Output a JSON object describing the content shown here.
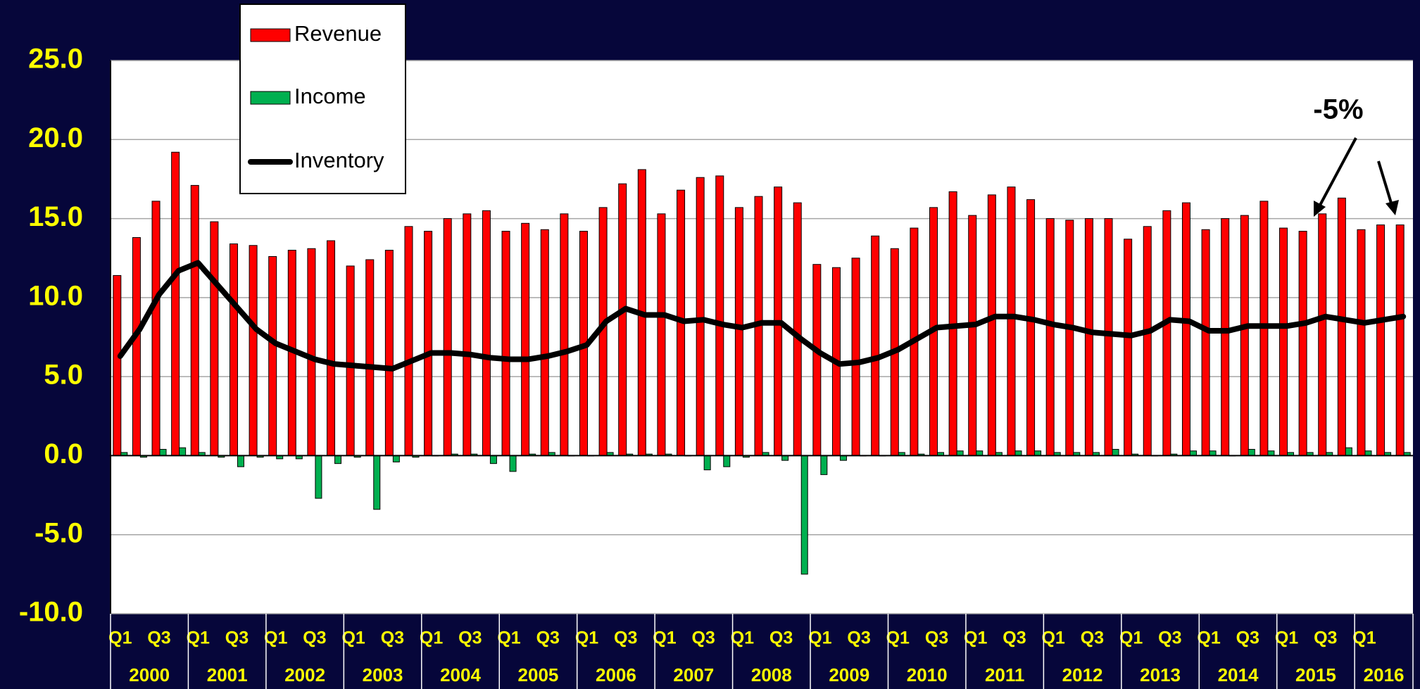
{
  "chart_data": {
    "type": "bar_line",
    "categories": [
      "Q1",
      null,
      "Q3",
      null,
      "Q1",
      null,
      "Q3",
      null,
      "Q1",
      null,
      "Q3",
      null,
      "Q1",
      null,
      "Q3",
      null,
      "Q1",
      null,
      "Q3",
      null,
      "Q1",
      null,
      "Q3",
      null,
      "Q1",
      null,
      "Q3",
      null,
      "Q1",
      null,
      "Q3",
      null,
      "Q1",
      null,
      "Q3",
      null,
      "Q1",
      null,
      "Q3",
      null,
      "Q1",
      null,
      "Q3",
      null,
      "Q1",
      null,
      "Q3",
      null,
      "Q1",
      null,
      "Q3",
      null,
      "Q1",
      null,
      "Q3",
      null,
      "Q1",
      null,
      "Q3",
      null,
      "Q1",
      null,
      "Q3",
      null,
      "Q1",
      null,
      null
    ],
    "year_labels": [
      "2000",
      "2001",
      "2002",
      "2003",
      "2004",
      "2005",
      "2006",
      "2007",
      "2008",
      "2009",
      "2010",
      "2011",
      "2012",
      "2013",
      "2014",
      "2015",
      "2016"
    ],
    "series": [
      {
        "name": "Revenue",
        "type": "bar",
        "color": "#ff0000",
        "values": [
          11.4,
          13.8,
          16.1,
          19.2,
          17.1,
          14.8,
          13.4,
          13.3,
          12.6,
          13.0,
          13.1,
          13.6,
          12.0,
          12.4,
          13.0,
          14.5,
          14.2,
          15.0,
          15.3,
          15.5,
          14.2,
          14.7,
          14.3,
          15.3,
          14.2,
          15.7,
          17.2,
          18.1,
          15.3,
          16.8,
          17.6,
          17.7,
          15.7,
          16.4,
          17.0,
          16.0,
          12.1,
          11.9,
          12.5,
          13.9,
          13.1,
          14.4,
          15.7,
          16.7,
          15.2,
          16.5,
          17.0,
          16.2,
          15.0,
          14.9,
          15.0,
          15.0,
          13.7,
          14.5,
          15.5,
          16.0,
          14.3,
          15.0,
          15.2,
          16.1,
          14.4,
          14.2,
          15.3,
          16.3,
          14.3,
          14.6,
          14.6
        ]
      },
      {
        "name": "Income",
        "type": "bar",
        "color": "#00b050",
        "values": [
          0.2,
          -0.1,
          0.4,
          0.5,
          0.2,
          -0.1,
          -0.7,
          -0.1,
          -0.2,
          -0.2,
          -2.7,
          -0.5,
          -0.1,
          -3.4,
          -0.4,
          -0.1,
          0.0,
          0.1,
          0.1,
          -0.5,
          -1.0,
          0.1,
          0.2,
          0.0,
          0.0,
          0.2,
          0.1,
          0.1,
          0.1,
          0.0,
          -0.9,
          -0.7,
          -0.1,
          0.2,
          -0.3,
          -7.5,
          -1.2,
          -0.3,
          0.0,
          0.0,
          0.2,
          0.1,
          0.2,
          0.3,
          0.3,
          0.2,
          0.3,
          0.3,
          0.2,
          0.2,
          0.2,
          0.4,
          0.1,
          0.0,
          0.1,
          0.3,
          0.3,
          0.0,
          0.4,
          0.3,
          0.2,
          0.2,
          0.2,
          0.5,
          0.3,
          0.2,
          0.2
        ]
      },
      {
        "name": "Inventory",
        "type": "line",
        "color": "#000000",
        "values": [
          6.3,
          8.0,
          10.2,
          11.7,
          12.2,
          10.8,
          9.4,
          8.0,
          7.1,
          6.6,
          6.1,
          5.8,
          5.7,
          5.6,
          5.5,
          6.0,
          6.5,
          6.5,
          6.4,
          6.2,
          6.1,
          6.1,
          6.3,
          6.6,
          7.0,
          8.5,
          9.3,
          8.9,
          8.9,
          8.5,
          8.6,
          8.3,
          8.1,
          8.4,
          8.4,
          7.4,
          6.5,
          5.8,
          5.9,
          6.2,
          6.7,
          7.4,
          8.1,
          8.2,
          8.3,
          8.8,
          8.8,
          8.6,
          8.3,
          8.1,
          7.8,
          7.7,
          7.6,
          7.9,
          8.6,
          8.5,
          7.9,
          7.9,
          8.2,
          8.2,
          8.2,
          8.4,
          8.8,
          8.6,
          8.4,
          8.6,
          8.8
        ]
      }
    ],
    "ylim": [
      -10,
      25
    ],
    "yticks": [
      {
        "value": -10,
        "label": "-10.0"
      },
      {
        "value": -5,
        "label": "-5.0"
      },
      {
        "value": 0,
        "label": "0.0"
      },
      {
        "value": 5,
        "label": "5.0"
      },
      {
        "value": 10,
        "label": "10.0"
      },
      {
        "value": 15,
        "label": "15.0"
      },
      {
        "value": 20,
        "label": "20.0"
      },
      {
        "value": 25,
        "label": "25.0"
      }
    ],
    "grid": true,
    "legend": "top-left",
    "annotations": [
      {
        "text": "-5%"
      }
    ]
  }
}
